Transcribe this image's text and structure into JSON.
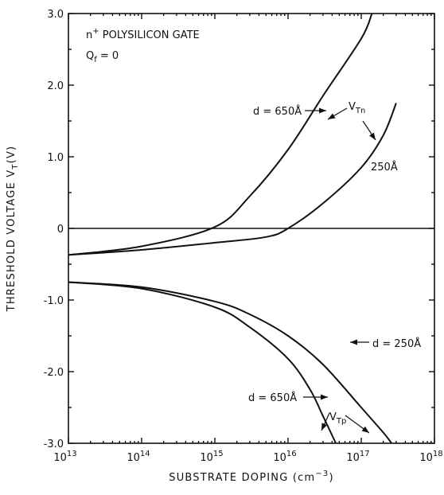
{
  "chart_data": {
    "type": "line",
    "title": "",
    "xlabel": "SUBSTRATE DOPING (cm⁻³)",
    "ylabel": "THRESHOLD VOLTAGE Vₜ(V)",
    "ylabel_parts": {
      "main": "THRESHOLD VOLTAGE V",
      "sub": "T",
      "unit": "(V)"
    },
    "xlabel_parts": {
      "main": "SUBSTRATE DOPING (cm",
      "sup": "−3",
      "close": ")"
    },
    "x_scale": "log",
    "xlim": [
      10000000000000.0,
      1e+18
    ],
    "ylim": [
      -3.0,
      3.0
    ],
    "grid": false,
    "x_ticks": [
      {
        "value": 10000000000000.0,
        "base": "10",
        "exp": "13"
      },
      {
        "value": 100000000000000.0,
        "base": "10",
        "exp": "14"
      },
      {
        "value": 1000000000000000.0,
        "base": "10",
        "exp": "15"
      },
      {
        "value": 1e+16,
        "base": "10",
        "exp": "16"
      },
      {
        "value": 1e+17,
        "base": "10",
        "exp": "17"
      },
      {
        "value": 1e+18,
        "base": "10",
        "exp": "18"
      }
    ],
    "y_ticks": [
      {
        "value": 3.0,
        "label": "3.0"
      },
      {
        "value": 2.0,
        "label": "2.0"
      },
      {
        "value": 1.0,
        "label": "1.0"
      },
      {
        "value": 0.0,
        "label": "0"
      },
      {
        "value": -1.0,
        "label": "-1.0"
      },
      {
        "value": -2.0,
        "label": "-2.0"
      },
      {
        "value": -3.0,
        "label": "-3.0"
      }
    ],
    "annotations": {
      "gate": {
        "prefix": "n",
        "sup": "+",
        "rest": " POLYSILICON GATE"
      },
      "qf": {
        "main": "Q",
        "sub": "f",
        "rest": " = 0"
      },
      "vtn": {
        "main": "V",
        "sub": "Tn"
      },
      "vtp": {
        "main": "V",
        "sub": "Tp"
      },
      "n_650": "d = 650Å",
      "n_250": "250Å",
      "p_250": "d = 250Å",
      "p_650": "d = 650Å"
    },
    "series": [
      {
        "group": "VTn",
        "thickness": "650Å",
        "x": [
          10000000000000.0,
          100000000000000.0,
          1000000000000000.0,
          3000000000000000.0,
          1e+16,
          3e+16,
          1e+17,
          1.4e+17
        ],
        "y": [
          -0.37,
          -0.25,
          0.02,
          0.45,
          1.1,
          1.85,
          2.65,
          3.0
        ]
      },
      {
        "group": "VTn",
        "thickness": "250Å",
        "x": [
          10000000000000.0,
          100000000000000.0,
          1000000000000000.0,
          5000000000000000.0,
          1e+16,
          3e+16,
          1e+17,
          2e+17,
          3e+17
        ],
        "y": [
          -0.37,
          -0.3,
          -0.2,
          -0.12,
          0.0,
          0.35,
          0.85,
          1.3,
          1.75
        ]
      },
      {
        "group": "VTp",
        "thickness": "250Å",
        "x": [
          10000000000000.0,
          100000000000000.0,
          1000000000000000.0,
          3000000000000000.0,
          1e+16,
          3e+16,
          1e+17,
          2e+17,
          2.6e+17
        ],
        "y": [
          -0.75,
          -0.82,
          -1.02,
          -1.2,
          -1.5,
          -1.9,
          -2.5,
          -2.85,
          -3.0
        ]
      },
      {
        "group": "VTp",
        "thickness": "650Å",
        "x": [
          10000000000000.0,
          100000000000000.0,
          1000000000000000.0,
          3000000000000000.0,
          1e+16,
          2e+16,
          3e+16,
          4.5e+16
        ],
        "y": [
          -0.75,
          -0.84,
          -1.1,
          -1.38,
          -1.82,
          -2.25,
          -2.62,
          -3.0
        ]
      }
    ]
  }
}
